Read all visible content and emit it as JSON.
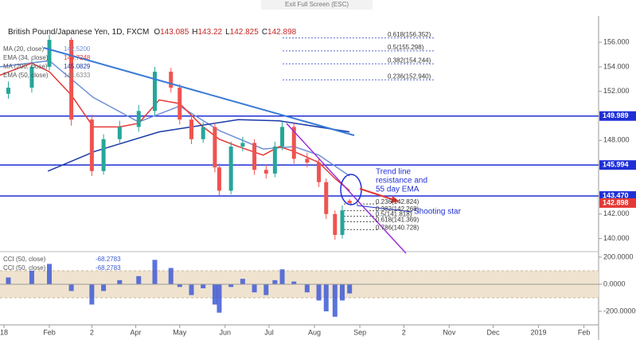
{
  "top_bar": "Exit Full Screen (ESC)",
  "chart_data": {
    "type": "candlestick",
    "title": "British Pound/Japanese Yen, 1D, FXCM",
    "ohlc_header": [
      {
        "label": "O",
        "value": 143.085
      },
      {
        "label": "H",
        "value": 143.22
      },
      {
        "label": "L",
        "value": 142.825
      },
      {
        "label": "C",
        "value": 142.898
      }
    ],
    "x": [
      3,
      19,
      31,
      46,
      60,
      68,
      79,
      92,
      103,
      114,
      120,
      128,
      136,
      144,
      147,
      155,
      163,
      171,
      179,
      185,
      190,
      198,
      207,
      215,
      220,
      226,
      231,
      236
    ],
    "open": [
      151.8,
      152.3,
      154.0,
      156.2,
      149.7,
      145.5,
      148.1,
      149.1,
      150.4,
      153.6,
      152.3,
      149.7,
      148.1,
      149.1,
      145.8,
      143.9,
      147.5,
      147.8,
      145.6,
      145.3,
      147.5,
      149.1,
      146.5,
      146.2,
      144.6,
      142.0,
      140.3,
      143.085
    ],
    "high": [
      152.8,
      154.6,
      156.6,
      156.4,
      150.1,
      148.5,
      149.6,
      150.9,
      154.0,
      153.9,
      152.6,
      150.0,
      149.5,
      149.4,
      146.1,
      147.9,
      148.3,
      148.1,
      146.0,
      147.9,
      149.5,
      149.4,
      147.0,
      146.5,
      144.9,
      142.3,
      142.7,
      143.22
    ],
    "low": [
      151.4,
      151.9,
      153.7,
      149.2,
      145.1,
      145.2,
      147.7,
      148.7,
      150.0,
      151.9,
      149.3,
      147.7,
      147.8,
      145.4,
      143.5,
      143.6,
      147.1,
      145.2,
      144.9,
      145.0,
      147.2,
      146.1,
      145.8,
      144.2,
      141.6,
      139.9,
      140.0,
      142.825
    ],
    "close": [
      152.3,
      154.0,
      156.2,
      149.7,
      145.5,
      148.1,
      149.1,
      150.4,
      153.6,
      152.3,
      149.7,
      148.1,
      149.1,
      145.8,
      143.9,
      147.5,
      147.8,
      145.6,
      145.3,
      147.5,
      149.1,
      146.5,
      146.2,
      144.6,
      142.0,
      140.3,
      142.3,
      142.898
    ],
    "up_color": "#26a69a",
    "down_color": "#ef5350",
    "xlim": [
      -2.7,
      406
    ],
    "xticks": [
      {
        "value": 0,
        "label": "18"
      },
      {
        "value": 31,
        "label": "Feb"
      },
      {
        "value": 60,
        "label": "2"
      },
      {
        "value": 90,
        "label": "Apr"
      },
      {
        "value": 120,
        "label": "May"
      },
      {
        "value": 151,
        "label": "Jun"
      },
      {
        "value": 181,
        "label": "Jul"
      },
      {
        "value": 212,
        "label": "Aug"
      },
      {
        "value": 243,
        "label": "Sep"
      },
      {
        "value": 273,
        "label": "2"
      },
      {
        "value": 304,
        "label": "Nov"
      },
      {
        "value": 334,
        "label": "Dec"
      },
      {
        "value": 365,
        "label": "2019"
      },
      {
        "value": 396,
        "label": "Feb"
      }
    ],
    "ylim": [
      139,
      157.5
    ],
    "yticks": [
      {
        "value": 156,
        "label": "156.000"
      },
      {
        "value": 154,
        "label": "154.000"
      },
      {
        "value": 152,
        "label": "152.000"
      },
      {
        "value": 148,
        "label": "148.000"
      },
      {
        "value": 142,
        "label": "142.000"
      },
      {
        "value": 140,
        "label": "140.000"
      }
    ],
    "indicators": [
      {
        "name": "MA (20, close)",
        "value": 142.52,
        "value_label": "142.5200",
        "color": "#6f8fd8",
        "x": [
          -3,
          31,
          61,
          92,
          120,
          147,
          177,
          198,
          215,
          236
        ],
        "values": [
          154.0,
          154.5,
          151.5,
          149.5,
          150.8,
          148.8,
          147.3,
          147.5,
          146.8,
          145.1
        ]
      },
      {
        "name": "EMA (34, close)",
        "value": 143.7248,
        "value_label": "143.7248",
        "color": "#e53935",
        "x": [
          -3,
          19,
          31,
          46,
          61,
          79,
          92,
          106,
          120,
          136,
          147,
          160,
          177,
          188,
          198,
          215,
          226,
          236
        ],
        "values": [
          153.3,
          154.3,
          153.6,
          151.7,
          149.1,
          149.1,
          149.4,
          151.3,
          151.0,
          149.1,
          148.1,
          147.5,
          146.8,
          147.5,
          147.1,
          146.2,
          144.9,
          143.9
        ]
      },
      {
        "name": "MA (200, close)",
        "value": 145.0829,
        "value_label": "145.0829",
        "color": "#1a3aa8",
        "x": [
          30,
          62,
          106,
          160,
          188,
          236
        ],
        "values": [
          145.5,
          147.1,
          148.7,
          149.7,
          149.6,
          148.7
        ]
      },
      {
        "name": "EMA (50, close)",
        "value": 144.6333,
        "value_label": "144.6333",
        "color": "#888888"
      }
    ],
    "levels": [
      {
        "value": 149.989,
        "label": "149.989"
      },
      {
        "value": 145.994,
        "label": "145.994"
      },
      {
        "value": 143.47,
        "label": "143.470"
      }
    ],
    "level_color": "#1f2fd6",
    "fib_upper": [
      {
        "value": 156.352,
        "label": "0.618(156.352)"
      },
      {
        "value": 155.298,
        "label": "0.5(155.298)"
      },
      {
        "value": 154.244,
        "label": "0.382(154.244)"
      },
      {
        "value": 152.94,
        "label": "0.236(152.940)"
      }
    ],
    "fib_lower": [
      {
        "value": 142.824,
        "label": "0.236(142.824)"
      },
      {
        "value": 142.268,
        "label": "0.382(142.268)"
      },
      {
        "value": 141.818,
        "label": "0.5(141.818)"
      },
      {
        "value": 141.369,
        "label": "0.618(141.369)"
      },
      {
        "value": 140.728,
        "label": "0.786(140.728)"
      }
    ],
    "annotation": [
      "Trend line",
      "resistance and",
      "55 day EMA"
    ],
    "annotation2": "Shooting star",
    "cci": {
      "legend": [
        {
          "name": "CCI (50, close)",
          "value_label": "-68.2783"
        },
        {
          "name": "CCI (50, close)",
          "value_label": "-68.2783"
        }
      ],
      "color": "#3f5bd6",
      "band": [
        -100,
        100
      ],
      "values": [
        50,
        100,
        150,
        -50,
        -150,
        -50,
        30,
        60,
        180,
        120,
        -20,
        -80,
        -30,
        -150,
        -210,
        -20,
        40,
        -60,
        -80,
        30,
        110,
        20,
        -60,
        -120,
        -200,
        -240,
        -120,
        -68.2783
      ],
      "ylim": [
        -300,
        229
      ],
      "yticks": [
        {
          "value": 200,
          "label": "200.0000"
        },
        {
          "value": 0,
          "label": "0.0000"
        },
        {
          "value": -200,
          "label": "-200.0000"
        }
      ]
    }
  }
}
